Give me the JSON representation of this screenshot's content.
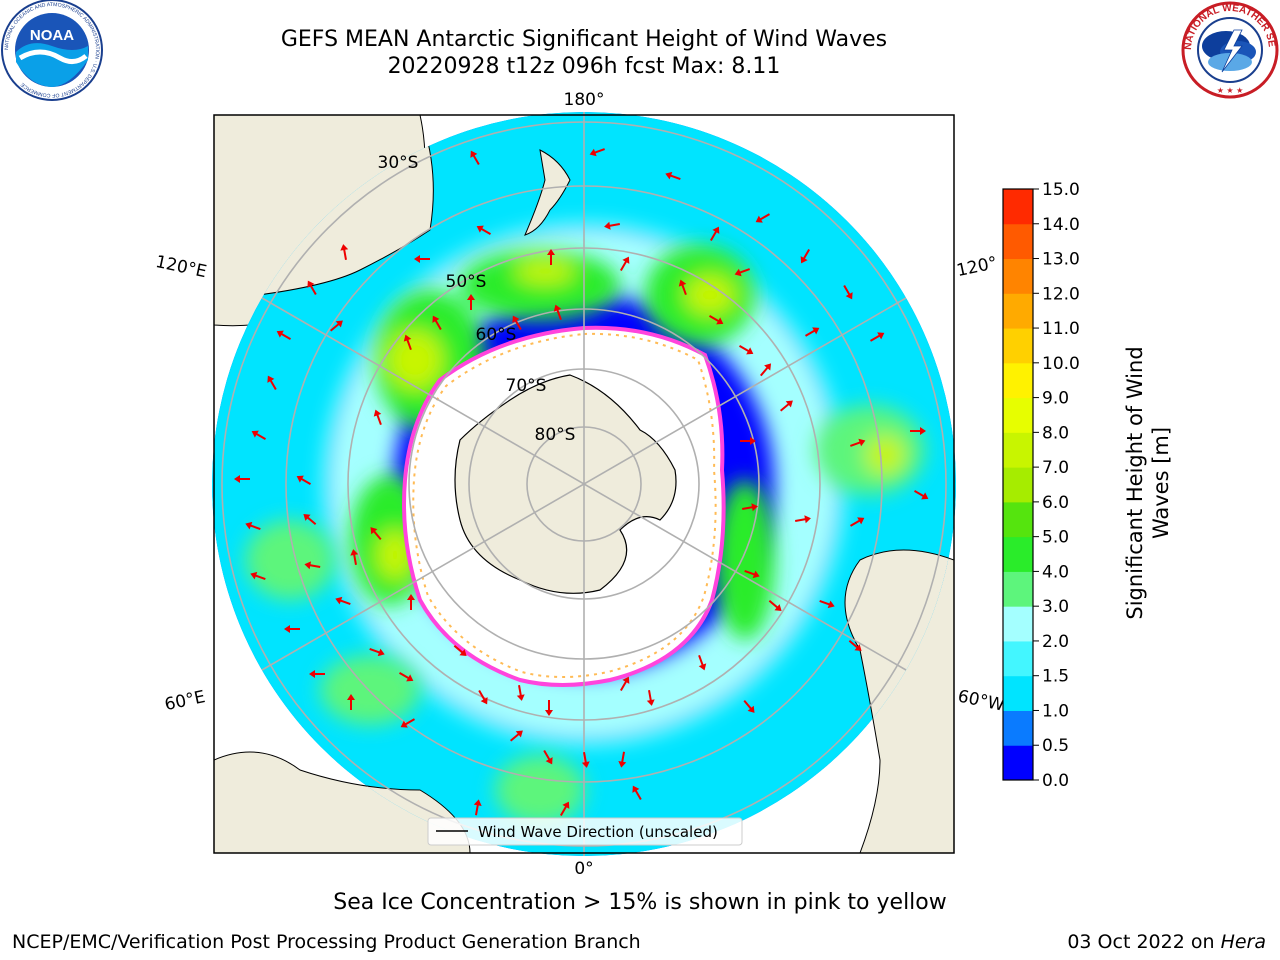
{
  "header": {
    "title_line1": "GEFS MEAN Antarctic Significant Height of Wind Waves",
    "title_line2": "20220928 t12z 096h fcst   Max: 8.11"
  },
  "logos": {
    "left": {
      "name": "noaa-logo",
      "text": "NOAA",
      "ring_text": "NATIONAL OCEANIC AND ATMOSPHERIC ADMINISTRATION · U.S. DEPARTMENT OF COMMERCE"
    },
    "right": {
      "name": "national-weather-service-logo",
      "ring_text": "NATIONAL WEATHER SERVICE"
    }
  },
  "map": {
    "projection": "south-polar-stereographic",
    "longitude_labels": {
      "top": "180°",
      "bottom": "0°",
      "left_upper": "120°E",
      "left_lower": "60°E",
      "right_upper": "120°",
      "right_lower": "60°W"
    },
    "latitude_labels": [
      "30°S",
      "50°S",
      "60°S",
      "70°S",
      "80°S"
    ],
    "legend_label": "Wind Wave Direction (unscaled)",
    "colors": {
      "land": "#efecdc",
      "ice_edge": "#ff44dd",
      "ice_inner": "#ffbb55",
      "arrows": "#ee0000",
      "grid": "#b0b0b0"
    }
  },
  "colorbar": {
    "label": "Significant Height of Wind Waves [m]",
    "label_line1": "Significant Height of Wind",
    "label_line2": "Waves [m]",
    "ticks": [
      "0.0",
      "0.5",
      "1.0",
      "1.5",
      "2.0",
      "3.0",
      "4.0",
      "5.0",
      "6.0",
      "7.0",
      "8.0",
      "9.0",
      "10.0",
      "11.0",
      "12.0",
      "13.0",
      "14.0",
      "15.0"
    ],
    "colors": [
      "#0000ff",
      "#0a7bff",
      "#00e4ff",
      "#43f6ff",
      "#a4ffff",
      "#5df57c",
      "#2aec2a",
      "#55e40e",
      "#a6ec00",
      "#c8f500",
      "#e7fe00",
      "#fff200",
      "#ffd000",
      "#ffaa00",
      "#ff8400",
      "#ff5a00",
      "#ff2a00"
    ]
  },
  "caption": "Sea Ice Concentration > 15% is shown in pink to yellow",
  "footer": {
    "left": "NCEP/EMC/Verification Post Processing Product Generation Branch",
    "right_prefix": "03 Oct 2022 on",
    "right_host": "Hera"
  }
}
